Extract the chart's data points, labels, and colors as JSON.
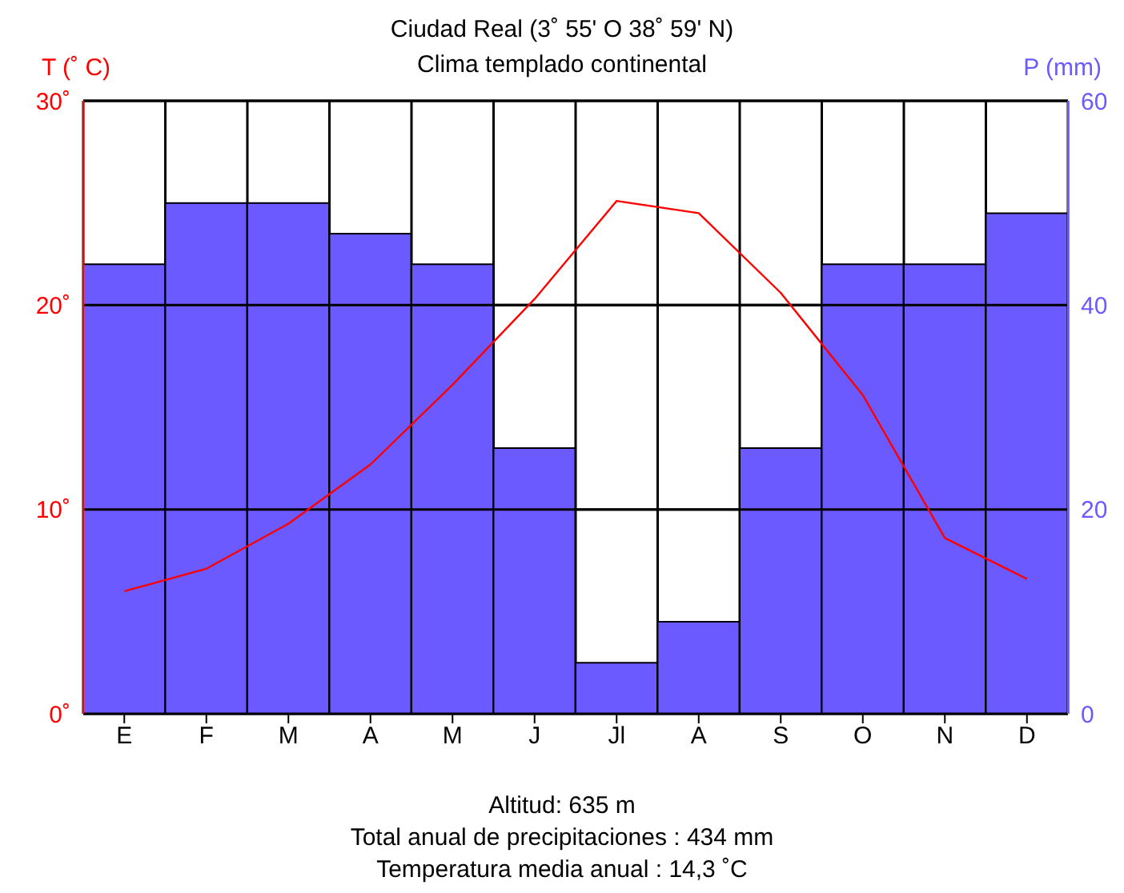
{
  "chart_data": {
    "type": "bar",
    "title": "Ciudad Real (3˚ 55' O   38˚ 59' N)",
    "subtitle": "Clima templado continental",
    "ylabel": "T (˚ C)",
    "y2label": "P (mm)",
    "categories": [
      "E",
      "F",
      "M",
      "A",
      "M",
      "J",
      "Jl",
      "A",
      "S",
      "O",
      "N",
      "D"
    ],
    "series": [
      {
        "axis": "y2",
        "color": "#6a5aff",
        "values": [
          44,
          50,
          50,
          47,
          44,
          26,
          5,
          9,
          26,
          44,
          44,
          49
        ]
      },
      {
        "type": "line",
        "axis": "y",
        "color": "#ff0000",
        "marker": "none",
        "values": [
          6.0,
          7.1,
          9.3,
          12.2,
          16.1,
          20.3,
          25.1,
          24.5,
          20.6,
          15.6,
          8.6,
          6.6
        ]
      }
    ],
    "ylim": [
      0,
      30
    ],
    "yticks": [
      {
        "value": 0,
        "label": "0˚"
      },
      {
        "value": 10,
        "label": "10˚"
      },
      {
        "value": 20,
        "label": "20˚"
      },
      {
        "value": 30,
        "label": "30˚"
      }
    ],
    "y2lim": [
      0,
      60
    ],
    "y2ticks": [
      0,
      20,
      40,
      60
    ],
    "grid": true,
    "annotations": [
      "Altitud: 635 m",
      "Total anual de precipitaciones : 434 mm",
      "Temperatura media anual : 14,3 ˚C"
    ]
  }
}
